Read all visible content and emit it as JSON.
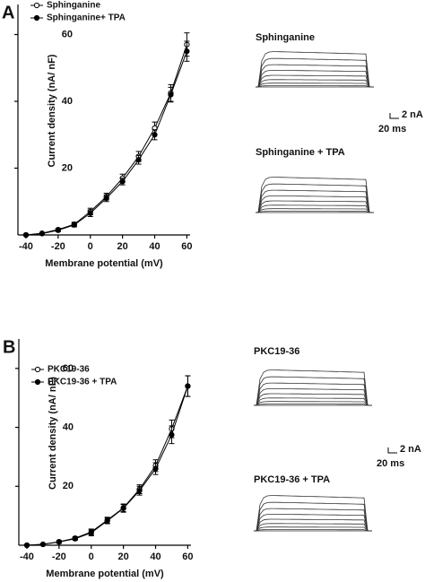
{
  "chart_data": [
    {
      "type": "line",
      "panel": "A",
      "x_label": "Membrane potential (mV)",
      "y_label": "Current density (nA/ nF)",
      "x": [
        -40,
        -30,
        -20,
        -10,
        0,
        10,
        20,
        30,
        40,
        50,
        60
      ],
      "xlim": [
        -45,
        62
      ],
      "ylim": [
        0,
        69
      ],
      "xticks": [
        -40,
        -20,
        0,
        20,
        40,
        60
      ],
      "yticks": [
        20,
        40,
        60
      ],
      "series": [
        {
          "name": "Sphinganine",
          "color": "#000000",
          "marker": "open",
          "values": [
            0,
            0.5,
            1.6,
            3.2,
            7,
            11.5,
            17,
            23.5,
            32,
            42.5,
            57
          ],
          "errors": [
            0.1,
            0.2,
            0.4,
            0.6,
            1,
            1,
            1.2,
            1.5,
            1.8,
            2.5,
            3.5
          ]
        },
        {
          "name": "Sphinganine+ TPA",
          "color": "#000000",
          "marker": "filled",
          "values": [
            0,
            0.4,
            1.4,
            3,
            6.5,
            11,
            16,
            22.5,
            30,
            42,
            55
          ],
          "errors": [
            0.1,
            0.2,
            0.4,
            0.6,
            1,
            1,
            1,
            1.3,
            1.5,
            2.2,
            3
          ]
        }
      ],
      "trace_labels": [
        "Sphinganine",
        "Sphinganine + TPA"
      ],
      "scale_bar": [
        "2 nA",
        "20 ms"
      ]
    },
    {
      "type": "line",
      "panel": "B",
      "x_label": "Membrane potential (mV)",
      "y_label": "Current density (nA/ nF)",
      "x": [
        -40,
        -30,
        -20,
        -10,
        0,
        10,
        20,
        30,
        40,
        50,
        60
      ],
      "xlim": [
        -45,
        62
      ],
      "ylim": [
        0,
        70
      ],
      "xticks": [
        -40,
        -20,
        0,
        20,
        40,
        60
      ],
      "yticks": [
        20,
        40,
        60
      ],
      "series": [
        {
          "name": "PKC19-36",
          "color": "#000000",
          "marker": "open",
          "values": [
            0,
            0.3,
            1.2,
            2.4,
            4.5,
            8.5,
            12.7,
            19,
            27,
            39.5,
            54
          ],
          "errors": [
            0.1,
            0.2,
            0.4,
            0.5,
            1,
            1,
            1.3,
            1.5,
            2,
            3,
            3.5
          ]
        },
        {
          "name": "PKC19-36 + TPA",
          "color": "#000000",
          "marker": "filled",
          "values": [
            0,
            0.3,
            1.1,
            2.2,
            4.2,
            8.3,
            12.5,
            18.5,
            26,
            37.5,
            54
          ],
          "errors": [
            0.1,
            0.2,
            0.4,
            0.5,
            1,
            1,
            1.3,
            1.5,
            2,
            3,
            3.5
          ]
        }
      ],
      "trace_labels": [
        "PKC19-36",
        "PKC19-36 + TPA"
      ],
      "scale_bar": [
        "2 nA",
        "20 ms"
      ]
    }
  ]
}
